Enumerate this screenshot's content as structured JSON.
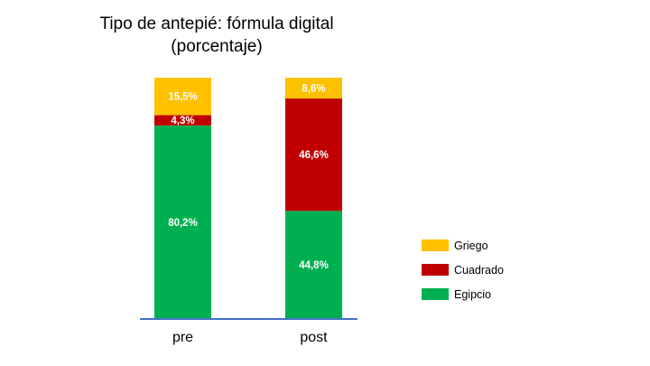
{
  "chart_data": {
    "type": "bar",
    "stacked": true,
    "title_line1": "Tipo de antepié: fórmula digital",
    "title_line2": "(porcentaje)",
    "categories": [
      "pre",
      "post"
    ],
    "series": [
      {
        "name": "Egipcio",
        "color": "#00B050",
        "values": [
          80.2,
          44.8
        ],
        "labels": [
          "80,2%",
          "44,8%"
        ]
      },
      {
        "name": "Cuadrado",
        "color": "#C00000",
        "values": [
          4.3,
          46.6
        ],
        "labels": [
          "4,3%",
          "46,6%"
        ]
      },
      {
        "name": "Griego",
        "color": "#FFC000",
        "values": [
          15.5,
          8.6
        ],
        "labels": [
          "15,5%",
          "8,6%"
        ]
      }
    ],
    "ylim": [
      0,
      100
    ],
    "grid": false,
    "legend_position": "right",
    "legend_order": [
      "Griego",
      "Cuadrado",
      "Egipcio"
    ],
    "axis_color": "#4472C4"
  }
}
